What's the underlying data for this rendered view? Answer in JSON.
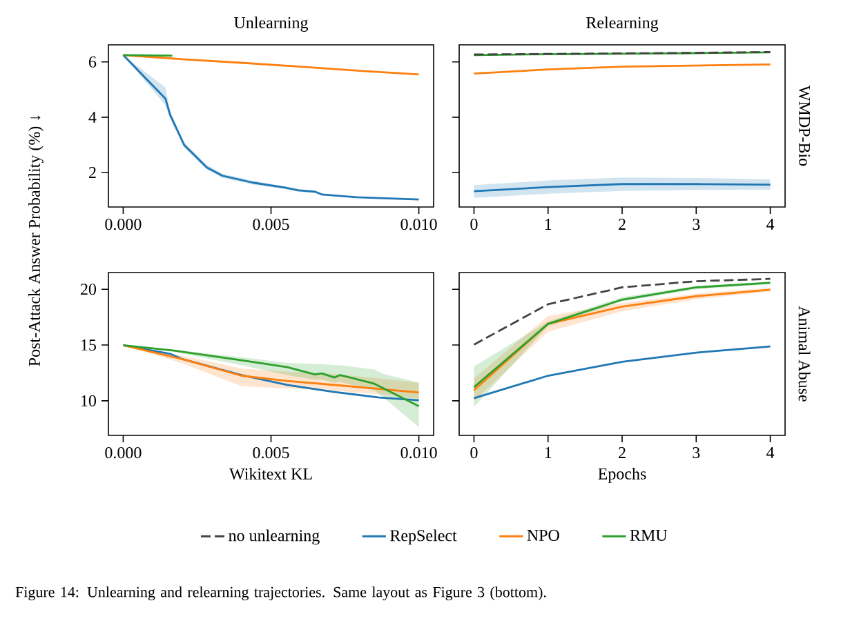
{
  "chart_data": [
    {
      "type": "line",
      "title": "Unlearning",
      "ylabel": "Post-Attack Answer Probability (%) ↓",
      "xlim": [
        -0.0005,
        0.0105
      ],
      "ylim": [
        0.75,
        6.62
      ],
      "xticks": [
        {
          "value": 0,
          "label": "0.000"
        },
        {
          "value": 0.005,
          "label": "0.005"
        },
        {
          "value": 0.01,
          "label": "0.010"
        }
      ],
      "yticks": [
        2,
        4,
        6
      ],
      "series": [
        {
          "color": "#1f77b4",
          "x": [
            0,
            0.00143,
            0.00159,
            0.00206,
            0.00283,
            0.00336,
            0.00439,
            0.00547,
            0.00593,
            0.0065,
            0.00673,
            0.0079,
            0.01
          ],
          "values": [
            6.25,
            4.67,
            4.08,
            3.0,
            2.18,
            1.88,
            1.63,
            1.45,
            1.35,
            1.3,
            1.2,
            1.1,
            1.02
          ],
          "lower": [
            6.25,
            4.43,
            3.95,
            2.9,
            2.1,
            1.8,
            1.56,
            1.4,
            1.3,
            1.25,
            1.17,
            1.08,
            1.0
          ],
          "upper": [
            6.25,
            5.08,
            4.2,
            3.1,
            2.28,
            1.95,
            1.7,
            1.5,
            1.4,
            1.34,
            1.23,
            1.12,
            1.04
          ]
        },
        {
          "color": "#ff7f0e",
          "x": [
            0,
            0.002,
            0.004,
            0.006,
            0.008,
            0.01
          ],
          "values": [
            6.25,
            6.1,
            5.97,
            5.83,
            5.68,
            5.55
          ]
        },
        {
          "color": "#2ca02c",
          "x": [
            0,
            0.00166
          ],
          "values": [
            6.25,
            6.23
          ]
        }
      ]
    },
    {
      "type": "line",
      "title": "Relearning",
      "y2label": "WMDP-Bio",
      "tick_labels": "x",
      "x": [
        0,
        1,
        2,
        3,
        4
      ],
      "xlim": [
        -0.2,
        4.2
      ],
      "ylim": [
        0.75,
        6.62
      ],
      "xticks": [
        0,
        1,
        2,
        3,
        4
      ],
      "yticks": [
        2,
        4,
        6
      ],
      "series": [
        {
          "color": "#1f77b4",
          "values": [
            1.32,
            1.47,
            1.58,
            1.58,
            1.56
          ],
          "lower": [
            1.08,
            1.23,
            1.33,
            1.37,
            1.38
          ],
          "upper": [
            1.54,
            1.71,
            1.82,
            1.8,
            1.75
          ]
        },
        {
          "color": "#ff7f0e",
          "values": [
            5.58,
            5.73,
            5.83,
            5.87,
            5.91
          ]
        },
        {
          "color": "#2ca02c",
          "values": [
            6.25,
            6.28,
            6.3,
            6.32,
            6.35
          ]
        },
        {
          "color": "#444444",
          "line_style": "dashed",
          "values": [
            6.27,
            6.29,
            6.31,
            6.33,
            6.36
          ]
        }
      ]
    },
    {
      "type": "line",
      "xlabel": "Wikitext KL",
      "xlim": [
        -0.0005,
        0.0105
      ],
      "ylim": [
        6.9,
        21.5
      ],
      "xticks": [
        {
          "value": 0,
          "label": "0.000"
        },
        {
          "value": 0.005,
          "label": "0.005"
        },
        {
          "value": 0.01,
          "label": "0.010"
        }
      ],
      "yticks": [
        10,
        15,
        20
      ],
      "annotations": [
        "Figure 14: Unlearning and relearning trajectories. Same layout as Figure 3 (bottom)."
      ],
      "series": [
        {
          "color": "#1f77b4",
          "x": [
            0,
            0.00159,
            0.00198,
            0.004,
            0.00555,
            0.0071,
            0.00866,
            0.01
          ],
          "values": [
            14.98,
            14.21,
            13.76,
            12.31,
            11.43,
            10.81,
            10.29,
            10.04
          ]
        },
        {
          "color": "#ff7f0e",
          "x": [
            0,
            0.00206,
            0.004,
            0.00555,
            0.0071,
            0.00866,
            0.01
          ],
          "values": [
            14.98,
            13.7,
            12.25,
            11.78,
            11.43,
            11.07,
            10.74
          ],
          "lower": [
            14.98,
            13.3,
            11.3,
            11.1,
            10.9,
            10.6,
            10.2
          ],
          "upper": [
            14.98,
            14.0,
            12.9,
            12.6,
            12.4,
            12.0,
            11.6
          ]
        },
        {
          "color": "#2ca02c",
          "x": [
            0,
            0.00167,
            0.004,
            0.00555,
            0.00648,
            0.00672,
            0.00714,
            0.00734,
            0.0085,
            0.0088,
            0.01
          ],
          "values": [
            14.98,
            14.52,
            13.64,
            13.02,
            12.36,
            12.46,
            12.09,
            12.31,
            11.53,
            11.12,
            9.52
          ],
          "lower": [
            14.98,
            14.4,
            13.2,
            12.3,
            11.9,
            11.9,
            11.6,
            11.7,
            10.9,
            10.3,
            7.64
          ],
          "upper": [
            14.98,
            14.6,
            13.9,
            13.4,
            13.3,
            13.3,
            13.2,
            13.2,
            12.8,
            12.4,
            11.63
          ]
        }
      ]
    },
    {
      "type": "line",
      "xlabel": "Epochs",
      "y2label": "Animal Abuse",
      "tick_labels": "x",
      "legend": "bottom",
      "x": [
        0,
        1,
        2,
        3,
        4
      ],
      "xlim": [
        -0.2,
        4.2
      ],
      "ylim": [
        6.9,
        21.5
      ],
      "xticks": [
        0,
        1,
        2,
        3,
        4
      ],
      "yticks": [
        10,
        15,
        20
      ],
      "series": [
        {
          "name": "no unlearning",
          "color": "#444444",
          "line_style": "dashed",
          "values": [
            15.04,
            18.66,
            20.17,
            20.72,
            20.93
          ]
        },
        {
          "name": "RepSelect",
          "color": "#1f77b4",
          "values": [
            10.23,
            12.25,
            13.49,
            14.32,
            14.87
          ]
        },
        {
          "name": "NPO",
          "color": "#ff7f0e",
          "values": [
            10.95,
            16.9,
            18.45,
            19.38,
            19.96
          ],
          "lower": [
            10.0,
            16.2,
            18.04,
            19.1,
            19.8
          ],
          "upper": [
            12.0,
            17.6,
            18.76,
            19.6,
            20.15
          ]
        },
        {
          "name": "RMU",
          "color": "#2ca02c",
          "values": [
            11.22,
            16.9,
            19.07,
            20.17,
            20.58
          ],
          "lower": [
            9.46,
            16.7,
            18.9,
            20.0,
            20.45
          ],
          "upper": [
            13.08,
            17.1,
            19.3,
            20.3,
            20.7
          ]
        }
      ]
    }
  ]
}
